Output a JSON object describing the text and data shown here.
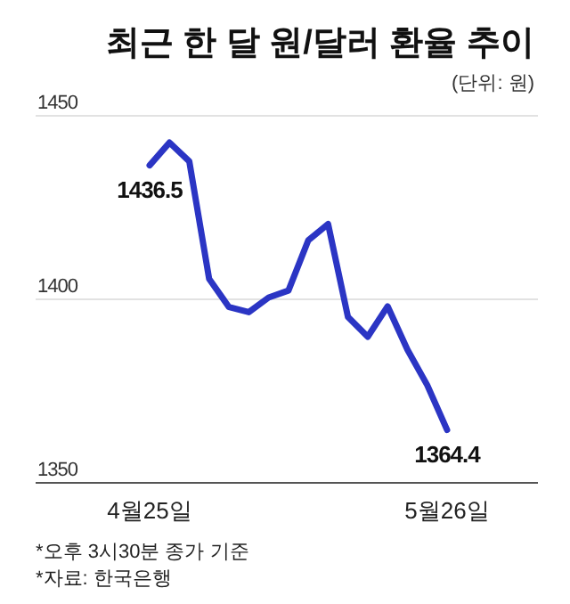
{
  "chart_data": {
    "type": "line",
    "title": "최근 한 달 원/달러 환율 추이",
    "annotations": [
      "(단위: 원)",
      "*오후 3시30분 종가 기준",
      "*자료: 한국은행"
    ],
    "categories": [
      "4월25일",
      null,
      null,
      null,
      null,
      null,
      null,
      null,
      null,
      null,
      null,
      null,
      null,
      null,
      null,
      "5월26일"
    ],
    "series": [
      {
        "color": "#2b35c4",
        "values": [
          1436.5,
          1442.7,
          1437.6,
          1405.6,
          1397.9,
          1396.5,
          1400.5,
          1402.4,
          1416.1,
          1420.5,
          1395.2,
          1389.8,
          1398.1,
          1386.3,
          1376.6,
          1364.4
        ],
        "value_labels": [
          "1436.5",
          null,
          null,
          null,
          null,
          null,
          null,
          null,
          null,
          null,
          null,
          null,
          null,
          null,
          null,
          "1364.4"
        ]
      }
    ],
    "ylim": [
      1350,
      1450
    ],
    "yticks": [
      1350,
      1400,
      1450
    ],
    "grid": "y",
    "marker": "none",
    "line_style": "solid"
  }
}
